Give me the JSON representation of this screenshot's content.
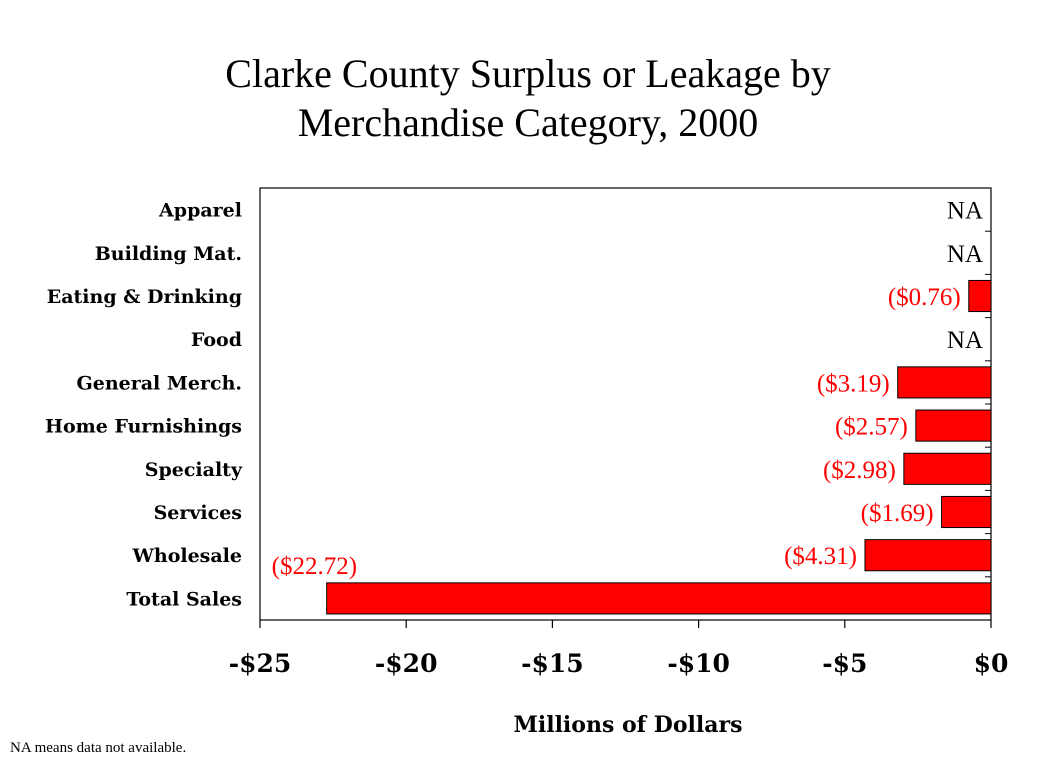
{
  "chart_data": {
    "type": "bar",
    "orientation": "horizontal",
    "title_lines": [
      "Clarke County Surplus or Leakage by",
      "Merchandise Category, 2000"
    ],
    "xlabel": "Millions of Dollars",
    "xlim": [
      -25,
      0
    ],
    "x_ticks": [
      -25,
      -20,
      -15,
      -10,
      -5,
      0
    ],
    "x_tick_labels": [
      "-$25",
      "-$20",
      "-$15",
      "-$10",
      "-$5",
      "$0"
    ],
    "categories": [
      "Apparel",
      "Building Mat.",
      "Eating & Drinking",
      "Food",
      "General Merch.",
      "Home Furnishings",
      "Specialty",
      "Services",
      "Wholesale",
      "Total Sales"
    ],
    "values": [
      null,
      null,
      -0.76,
      null,
      -3.19,
      -2.57,
      -2.98,
      -1.69,
      -4.31,
      -22.72
    ],
    "data_labels": [
      "NA",
      "NA",
      "($0.76)",
      "NA",
      "($3.19)",
      "($2.57)",
      "($2.98)",
      "($1.69)",
      "($4.31)",
      "($22.72)"
    ],
    "bar_color": "#ff0000",
    "label_color": "#ff0000",
    "na_label_color": "#000000",
    "grid": false,
    "legend": "none"
  },
  "footnote": "NA means data not available."
}
